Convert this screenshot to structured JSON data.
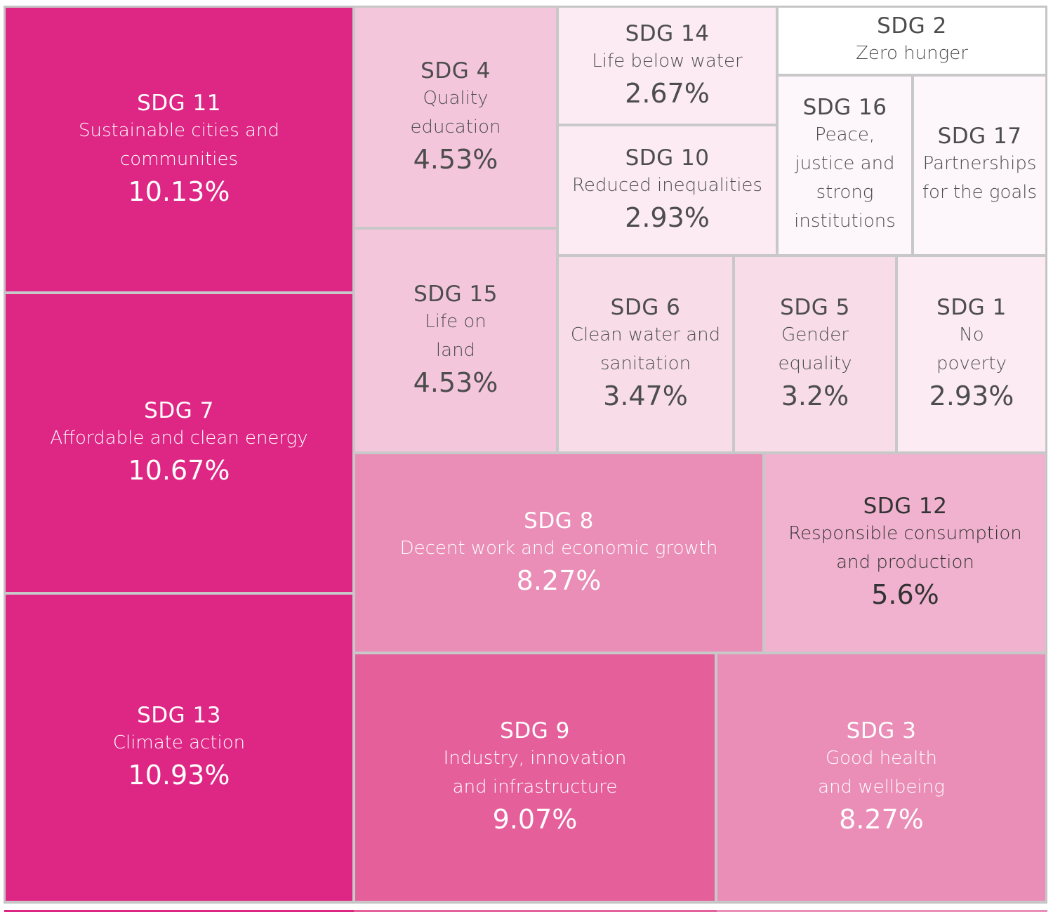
{
  "chart_data": {
    "type": "treemap",
    "title": "",
    "unit": "%",
    "items": [
      {
        "code": "SDG 11",
        "name": "Sustainable cities and communities",
        "value": 10.13,
        "label": "10.13%",
        "color": "#de2684",
        "text_color": "#ffffff"
      },
      {
        "code": "SDG 7",
        "name": "Affordable and clean energy",
        "value": 10.67,
        "label": "10.67%",
        "color": "#de2684",
        "text_color": "#ffffff"
      },
      {
        "code": "SDG 13",
        "name": "Climate action",
        "value": 10.93,
        "label": "10.93%",
        "color": "#de2684",
        "text_color": "#ffffff"
      },
      {
        "code": "SDG 4",
        "name": "Quality education",
        "value": 4.53,
        "label": "4.53%",
        "color": "#f4c6dc",
        "text_color": "#4d4d4d"
      },
      {
        "code": "SDG 15",
        "name": "Life on land",
        "value": 4.53,
        "label": "4.53%",
        "color": "#f4c6dc",
        "text_color": "#4d4d4d"
      },
      {
        "code": "SDG 14",
        "name": "Life below water",
        "value": 2.67,
        "label": "2.67%",
        "color": "#fcebf3",
        "text_color": "#4d4d4d"
      },
      {
        "code": "SDG 10",
        "name": "Reduced inequalities",
        "value": 2.93,
        "label": "2.93%",
        "color": "#fcebf3",
        "text_color": "#4d4d4d"
      },
      {
        "code": "SDG 2",
        "name": "Zero hunger",
        "value": null,
        "label": "",
        "color": "#ffffff",
        "text_color": "#4d4d4d"
      },
      {
        "code": "SDG 16",
        "name": "Peace, justice and strong institutions",
        "value": null,
        "label": "",
        "color": "#fdf6fa",
        "text_color": "#4d4d4d"
      },
      {
        "code": "SDG 17",
        "name": "Partnerships for the goals",
        "value": null,
        "label": "",
        "color": "#fdf6fa",
        "text_color": "#4d4d4d"
      },
      {
        "code": "SDG 6",
        "name": "Clean water and sanitation",
        "value": 3.47,
        "label": "3.47%",
        "color": "#f8dde9",
        "text_color": "#4d4d4d"
      },
      {
        "code": "SDG 5",
        "name": "Gender equality",
        "value": 3.2,
        "label": "3.2%",
        "color": "#f8dde9",
        "text_color": "#4d4d4d"
      },
      {
        "code": "SDG 1",
        "name": "No poverty",
        "value": 2.93,
        "label": "2.93%",
        "color": "#fcebf3",
        "text_color": "#4d4d4d"
      },
      {
        "code": "SDG 8",
        "name": "Decent work and economic growth",
        "value": 8.27,
        "label": "8.27%",
        "color": "#ea8db7",
        "text_color": "#ffffff"
      },
      {
        "code": "SDG 12",
        "name": "Responsible consumption and production",
        "value": 5.6,
        "label": "5.6%",
        "color": "#f0b2cf",
        "text_color": "#333333"
      },
      {
        "code": "SDG 9",
        "name": "Industry, innovation and infrastructure",
        "value": 9.07,
        "label": "9.07%",
        "color": "#e5609b",
        "text_color": "#ffffff"
      },
      {
        "code": "SDG 3",
        "name": "Good health and wellbeing",
        "value": 8.27,
        "label": "8.27%",
        "color": "#ea8db7",
        "text_color": "#ffffff"
      }
    ]
  }
}
